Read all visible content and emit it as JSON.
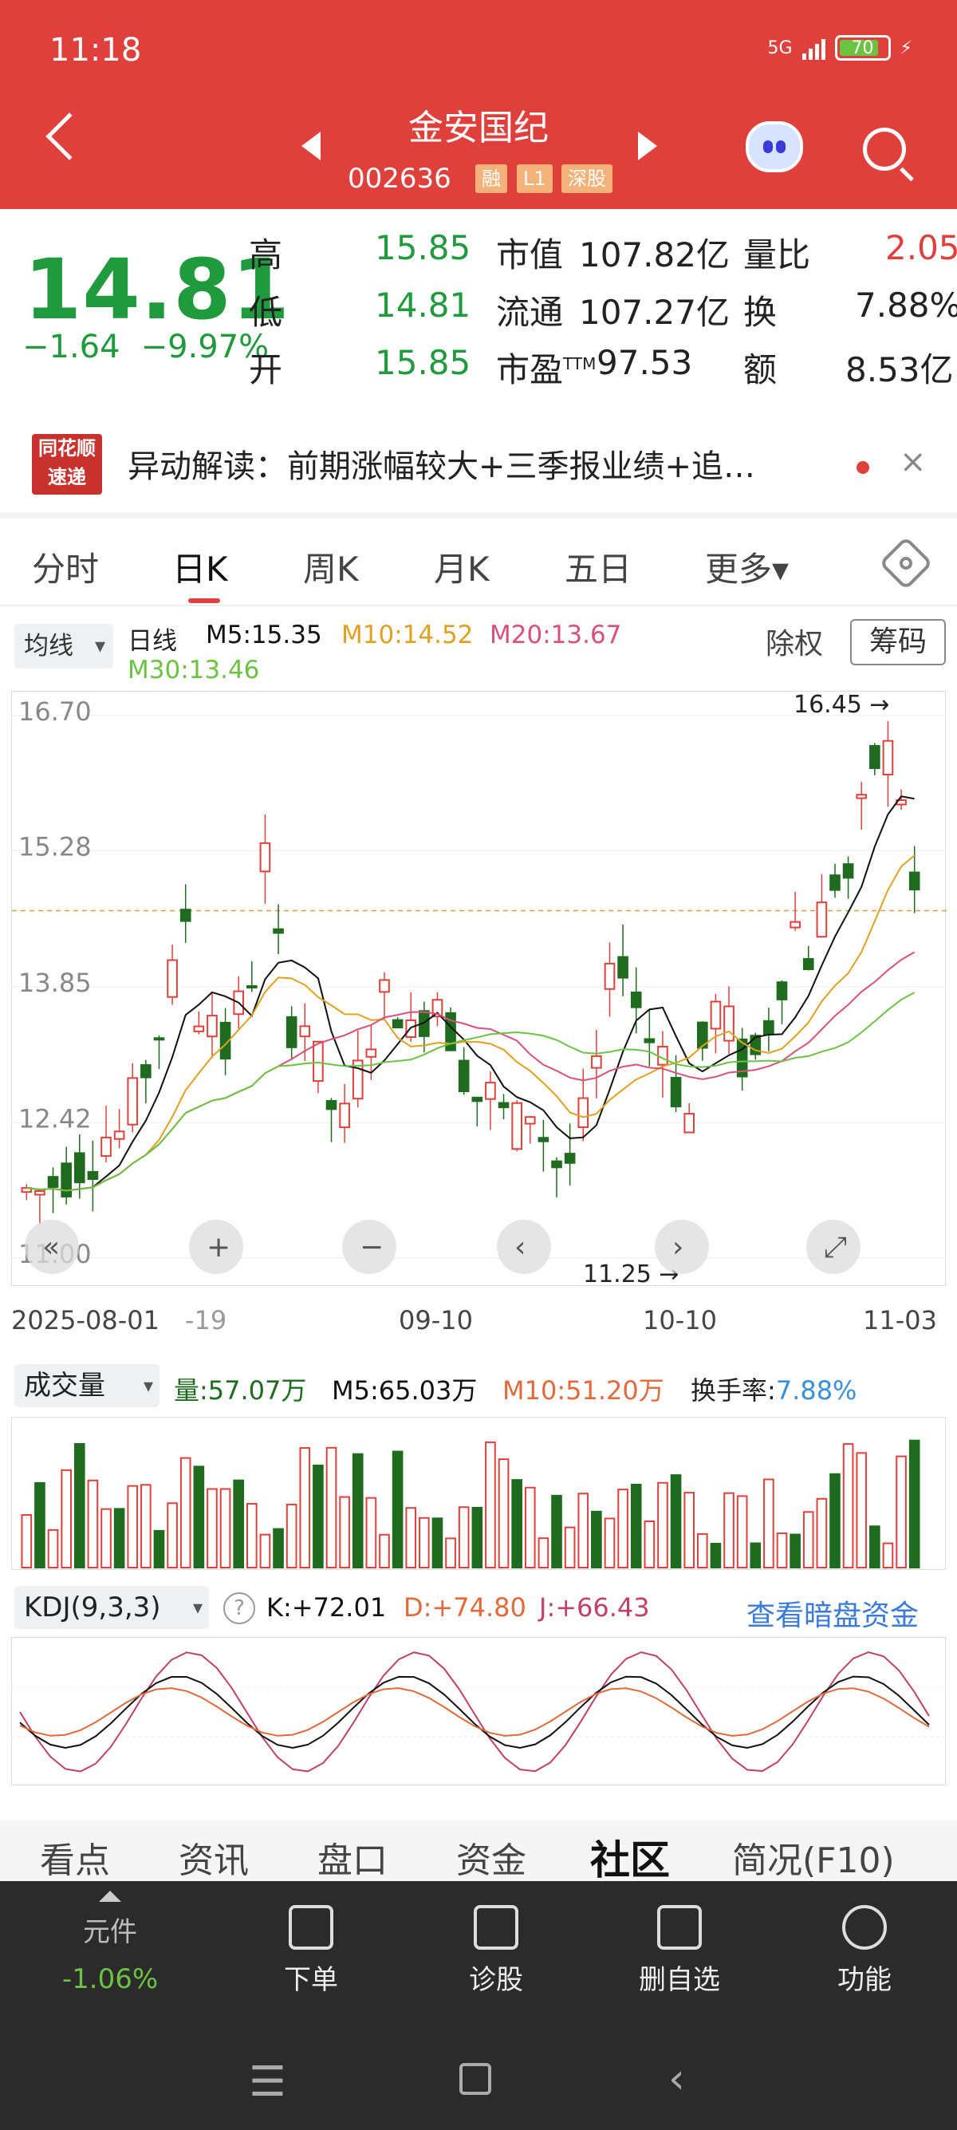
{
  "status": {
    "time": "11:18",
    "network": "5G",
    "battery": "70"
  },
  "header": {
    "name": "金安国纪",
    "code": "002636",
    "tags": [
      "融",
      "L1",
      "深股"
    ]
  },
  "quote": {
    "price": "14.81",
    "change": "−1.64",
    "change_pct": "−9.97%",
    "high_label": "高",
    "high": "15.85",
    "low_label": "低",
    "low": "14.81",
    "open_label": "开",
    "open": "15.85",
    "mcap_label": "市值",
    "mcap": "107.82亿",
    "float_label": "流通",
    "float": "107.27亿",
    "pe_label": "市盈",
    "pe_sup": "TTM",
    "pe": "97.53",
    "vr_label": "量比",
    "vr": "2.05",
    "turn_label": "换",
    "turn": "7.88%",
    "amt_label": "额",
    "amt": "8.53亿"
  },
  "news": {
    "logo_line1": "同花顺",
    "logo_line2": "速递",
    "text": "异动解读：前期涨幅较大+三季报业绩+追…",
    "close": "×"
  },
  "tabs": [
    "分时",
    "日K",
    "周K",
    "月K",
    "五日",
    "更多▾"
  ],
  "ma": {
    "select": "均线",
    "label": "日线",
    "m5": "M5:15.35",
    "m10": "M10:14.52",
    "m20": "M20:13.67",
    "m30": "M30:13.46",
    "fq": "除权",
    "chip": "筹码"
  },
  "kline": {
    "yticks": [
      "16.70",
      "15.28",
      "13.85",
      "12.42",
      "11.00"
    ],
    "xticks": [
      "2025-08-01",
      "-19",
      "09-10",
      "10-10",
      "11-03"
    ],
    "max_label": "16.45",
    "min_label": "11.25",
    "prev_close": "16.45"
  },
  "volume": {
    "select": "成交量",
    "vol": "量:57.07万",
    "m5": "M5:65.03万",
    "m10": "M10:51.20万",
    "turn_label": "换手率:",
    "turn": "7.88%"
  },
  "kdj": {
    "select": "KDJ(9,3,3)",
    "help": "?",
    "k": "K:+72.01",
    "d": "D:+74.80",
    "j": "J:+66.43",
    "link": "查看暗盘资金"
  },
  "bottom_tabs": [
    "看点",
    "资讯",
    "盘口",
    "资金",
    "社区",
    "简况(F10)"
  ],
  "dock": {
    "index_name": "元件",
    "index_change": "-1.06%",
    "items": [
      "下单",
      "诊股",
      "删自选",
      "功能"
    ]
  },
  "colors": {
    "up": "#e0403c",
    "down": "#1f6b1f",
    "m5": "#111111",
    "m10": "#e0a020",
    "m20": "#d9507a",
    "m30": "#6cc242"
  }
}
